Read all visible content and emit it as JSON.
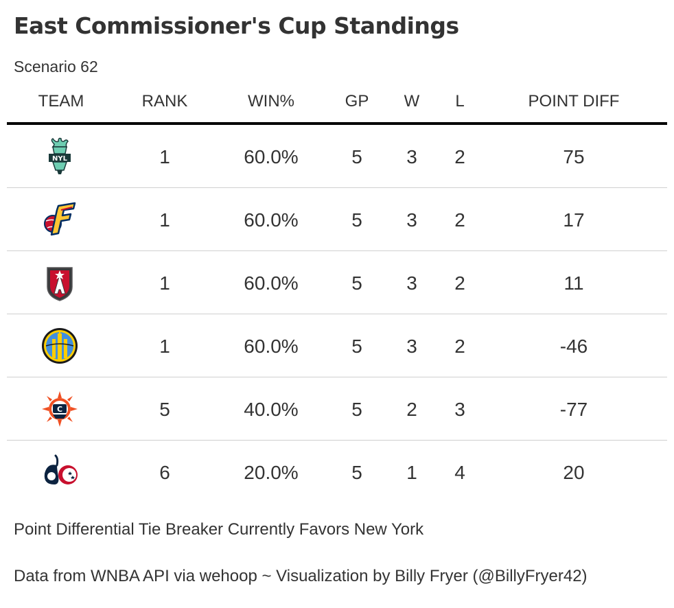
{
  "title": "East Commissioner's Cup Standings",
  "subtitle": "Scenario 62",
  "table": {
    "columns": [
      "TEAM",
      "RANK",
      "WIN%",
      "GP",
      "W",
      "L",
      "POINT DIFF"
    ],
    "rows": [
      {
        "team_icon": "new-york-liberty-logo",
        "rank": "1",
        "win_pct": "60.0%",
        "gp": "5",
        "w": "3",
        "l": "2",
        "point_diff": "75"
      },
      {
        "team_icon": "indiana-fever-logo",
        "rank": "1",
        "win_pct": "60.0%",
        "gp": "5",
        "w": "3",
        "l": "2",
        "point_diff": "17"
      },
      {
        "team_icon": "atlanta-dream-logo",
        "rank": "1",
        "win_pct": "60.0%",
        "gp": "5",
        "w": "3",
        "l": "2",
        "point_diff": "11"
      },
      {
        "team_icon": "chicago-sky-logo",
        "rank": "1",
        "win_pct": "60.0%",
        "gp": "5",
        "w": "3",
        "l": "2",
        "point_diff": "-46"
      },
      {
        "team_icon": "connecticut-sun-logo",
        "rank": "5",
        "win_pct": "40.0%",
        "gp": "5",
        "w": "2",
        "l": "3",
        "point_diff": "-77"
      },
      {
        "team_icon": "washington-mystics-logo",
        "rank": "6",
        "win_pct": "20.0%",
        "gp": "5",
        "w": "1",
        "l": "4",
        "point_diff": "20"
      }
    ]
  },
  "note": "Point Differential Tie Breaker Currently Favors New York",
  "source": "Data from WNBA API via wehoop ~ Visualization by Billy Fryer (@BillyFryer42)",
  "colors": {
    "text": "#333333",
    "header_rule": "#000000",
    "row_divider": "#cfcfcf",
    "liberty_teal": "#6ECEB2",
    "fever_red": "#C8102E",
    "fever_navy": "#002D62",
    "dream_red": "#C8102E",
    "sky_blue": "#418FDE",
    "sky_yellow": "#FFCD00",
    "sun_orange": "#F05023",
    "mystics_navy": "#0C2340",
    "mystics_red": "#C8102E"
  }
}
